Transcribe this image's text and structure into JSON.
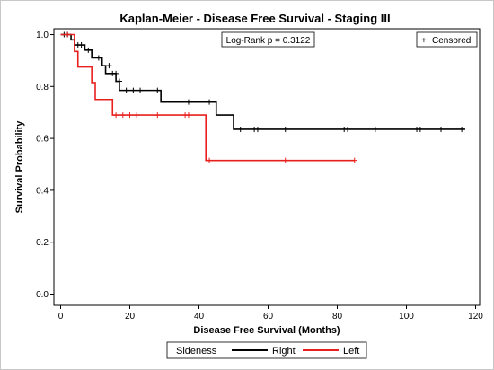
{
  "chart_data": {
    "type": "line",
    "title": "Kaplan-Meier - Disease Free Survival - Staging III",
    "xlabel": "Disease Free Survival (Months)",
    "ylabel": "Survival Probability",
    "xlim": [
      0,
      120
    ],
    "ylim": [
      0,
      1.0
    ],
    "xticks": [
      "0",
      "20",
      "40",
      "60",
      "80",
      "100",
      "120"
    ],
    "yticks": [
      "0.0",
      "0.2",
      "0.4",
      "0.6",
      "0.8",
      "1.0"
    ],
    "grid": false,
    "annotation": "Log-Rank p = 0.3122",
    "censored_label": "Censored",
    "censored_symbol": "+",
    "legend": {
      "title": "Sideness",
      "placement": "bottom"
    },
    "series": [
      {
        "name": "Right",
        "color": "#000000",
        "steps": [
          [
            0,
            1.0
          ],
          [
            3,
            0.98
          ],
          [
            4,
            0.96
          ],
          [
            7,
            0.94
          ],
          [
            9,
            0.91
          ],
          [
            12,
            0.88
          ],
          [
            13,
            0.85
          ],
          [
            16,
            0.82
          ],
          [
            17,
            0.785
          ],
          [
            29,
            0.74
          ],
          [
            45,
            0.69
          ],
          [
            50,
            0.635
          ],
          [
            117,
            0.635
          ]
        ],
        "censored": [
          [
            1,
            1.0
          ],
          [
            2,
            1.0
          ],
          [
            5,
            0.96
          ],
          [
            6,
            0.96
          ],
          [
            8,
            0.94
          ],
          [
            11,
            0.91
          ],
          [
            14,
            0.88
          ],
          [
            15,
            0.85
          ],
          [
            16,
            0.85
          ],
          [
            17,
            0.82
          ],
          [
            19,
            0.785
          ],
          [
            21,
            0.785
          ],
          [
            23,
            0.785
          ],
          [
            28,
            0.785
          ],
          [
            37,
            0.74
          ],
          [
            43,
            0.74
          ],
          [
            52,
            0.635
          ],
          [
            56,
            0.635
          ],
          [
            57,
            0.635
          ],
          [
            65,
            0.635
          ],
          [
            82,
            0.635
          ],
          [
            83,
            0.635
          ],
          [
            91,
            0.635
          ],
          [
            103,
            0.635
          ],
          [
            104,
            0.635
          ],
          [
            110,
            0.635
          ],
          [
            116,
            0.635
          ]
        ]
      },
      {
        "name": "Left",
        "color": "#e8201d",
        "steps": [
          [
            0,
            1.0
          ],
          [
            4,
            0.935
          ],
          [
            5,
            0.875
          ],
          [
            9,
            0.815
          ],
          [
            10,
            0.75
          ],
          [
            15,
            0.69
          ],
          [
            42,
            0.515
          ],
          [
            85,
            0.515
          ]
        ],
        "censored": [
          [
            2,
            1.0
          ],
          [
            16,
            0.69
          ],
          [
            18,
            0.69
          ],
          [
            20,
            0.69
          ],
          [
            22,
            0.69
          ],
          [
            28,
            0.69
          ],
          [
            36,
            0.69
          ],
          [
            37,
            0.69
          ],
          [
            43,
            0.515
          ],
          [
            65,
            0.515
          ],
          [
            85,
            0.515
          ]
        ]
      }
    ]
  }
}
